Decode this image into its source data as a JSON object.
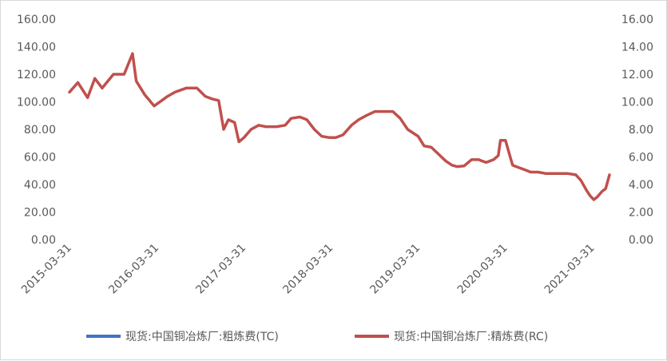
{
  "chart_data": {
    "type": "line",
    "title": "",
    "xlabel": "",
    "ylabel": "",
    "x_tick_labels": [
      "2015-03-31",
      "2016-03-31",
      "2017-03-31",
      "2018-03-31",
      "2019-03-31",
      "2020-03-31",
      "2021-03-31"
    ],
    "y_left": {
      "lim": [
        0,
        160
      ],
      "ticks": [
        "0.00",
        "20.00",
        "40.00",
        "60.00",
        "80.00",
        "100.00",
        "120.00",
        "140.00",
        "160.00"
      ]
    },
    "y_right": {
      "lim": [
        0,
        16
      ],
      "ticks": [
        "0.00",
        "2.00",
        "4.00",
        "6.00",
        "8.00",
        "10.00",
        "12.00",
        "14.00",
        "16.00"
      ]
    },
    "grid": false,
    "legend_position": "bottom",
    "series": [
      {
        "name": "现货:中国铜冶炼厂:粗炼费(TC)",
        "axis": "left",
        "color": "#4472c4",
        "x": [],
        "values": []
      },
      {
        "name": "现货:中国铜冶炼厂:精炼费(RC)",
        "axis": "right",
        "color": "#c0504d",
        "x": [
          "2015-03-31",
          "2015-05-05",
          "2015-06-15",
          "2015-07-15",
          "2015-08-15",
          "2015-10-01",
          "2015-11-15",
          "2015-12-20",
          "2016-01-05",
          "2016-02-10",
          "2016-03-20",
          "2016-05-15",
          "2016-06-15",
          "2016-08-01",
          "2016-09-15",
          "2016-10-20",
          "2016-11-20",
          "2016-12-15",
          "2017-01-05",
          "2017-01-25",
          "2017-02-20",
          "2017-03-10",
          "2017-03-31",
          "2017-04-30",
          "2017-06-01",
          "2017-07-01",
          "2017-08-15",
          "2017-09-20",
          "2017-10-15",
          "2017-11-20",
          "2017-12-20",
          "2018-01-20",
          "2018-02-20",
          "2018-03-25",
          "2018-04-20",
          "2018-05-20",
          "2018-06-25",
          "2018-07-25",
          "2018-08-25",
          "2018-10-01",
          "2018-11-10",
          "2018-12-15",
          "2019-01-15",
          "2019-02-15",
          "2019-03-31",
          "2019-04-25",
          "2019-05-25",
          "2019-06-25",
          "2019-07-25",
          "2019-08-20",
          "2019-09-10",
          "2019-10-10",
          "2019-11-10",
          "2019-12-10",
          "2019-12-25",
          "2020-01-10",
          "2020-02-10",
          "2020-03-01",
          "2020-03-10",
          "2020-03-31",
          "2020-04-20",
          "2020-04-30",
          "2020-05-15",
          "2020-06-15",
          "2020-07-15",
          "2020-08-15",
          "2020-09-15",
          "2020-10-15",
          "2020-11-15",
          "2020-12-15",
          "2021-01-20",
          "2021-02-10",
          "2021-03-05",
          "2021-03-20",
          "2021-04-05",
          "2021-04-20",
          "2021-05-10",
          "2021-05-25",
          "2021-06-10"
        ],
        "values": [
          10.7,
          11.4,
          10.3,
          11.7,
          11.0,
          12.0,
          12.0,
          13.5,
          11.5,
          10.5,
          9.7,
          10.4,
          10.7,
          11.0,
          11.0,
          10.4,
          10.2,
          10.1,
          8.0,
          8.7,
          8.5,
          7.1,
          7.4,
          8.0,
          8.3,
          8.2,
          8.2,
          8.3,
          8.8,
          8.9,
          8.7,
          8.0,
          7.5,
          7.4,
          7.4,
          7.6,
          8.3,
          8.7,
          9.0,
          9.3,
          9.3,
          9.3,
          8.8,
          8.0,
          7.5,
          6.8,
          6.7,
          6.2,
          5.7,
          5.4,
          5.3,
          5.35,
          5.8,
          5.8,
          5.7,
          5.6,
          5.8,
          6.1,
          7.2,
          7.2,
          6.0,
          5.4,
          5.3,
          5.1,
          4.9,
          4.9,
          4.8,
          4.8,
          4.8,
          4.8,
          4.7,
          4.3,
          3.6,
          3.2,
          2.9,
          3.1,
          3.5,
          3.7,
          4.7
        ]
      }
    ]
  }
}
